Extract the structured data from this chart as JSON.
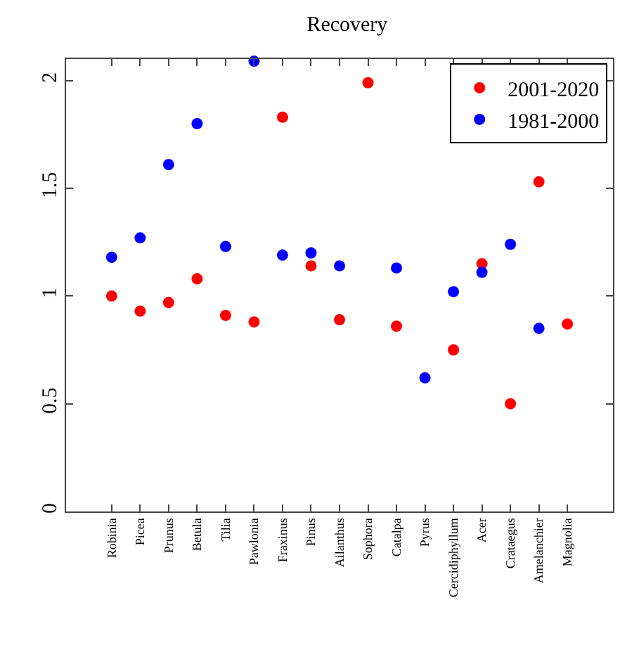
{
  "chart_data": {
    "type": "scatter",
    "title": "Recovery",
    "categories": [
      "Robinia",
      "Picea",
      "Prunus",
      "Betula",
      "Tilia",
      "Pawlonia",
      "Fraxinus",
      "Pinus",
      "Ailanthus",
      "Sophora",
      "Catalpa",
      "Pyrus",
      "Cercidiphyllum",
      "Acer",
      "Crataegus",
      "Amelanchier",
      "Magnolia"
    ],
    "series": [
      {
        "name": "2001-2020",
        "color": "#ff0000",
        "values": [
          1.0,
          0.93,
          0.97,
          1.08,
          0.91,
          0.88,
          1.83,
          1.14,
          0.89,
          1.99,
          0.86,
          null,
          0.75,
          1.15,
          0.5,
          1.53,
          0.87
        ]
      },
      {
        "name": "1981-2000",
        "color": "#0000ff",
        "values": [
          1.18,
          1.27,
          1.61,
          1.8,
          1.23,
          2.09,
          1.19,
          1.2,
          1.14,
          null,
          1.13,
          0.62,
          1.02,
          1.11,
          1.24,
          0.85,
          null
        ]
      }
    ],
    "ylim": [
      0,
      2.1
    ],
    "yticks": [
      0,
      0.5,
      1,
      1.5,
      2
    ],
    "grid": false,
    "legend": "top right",
    "marker": "circle"
  }
}
